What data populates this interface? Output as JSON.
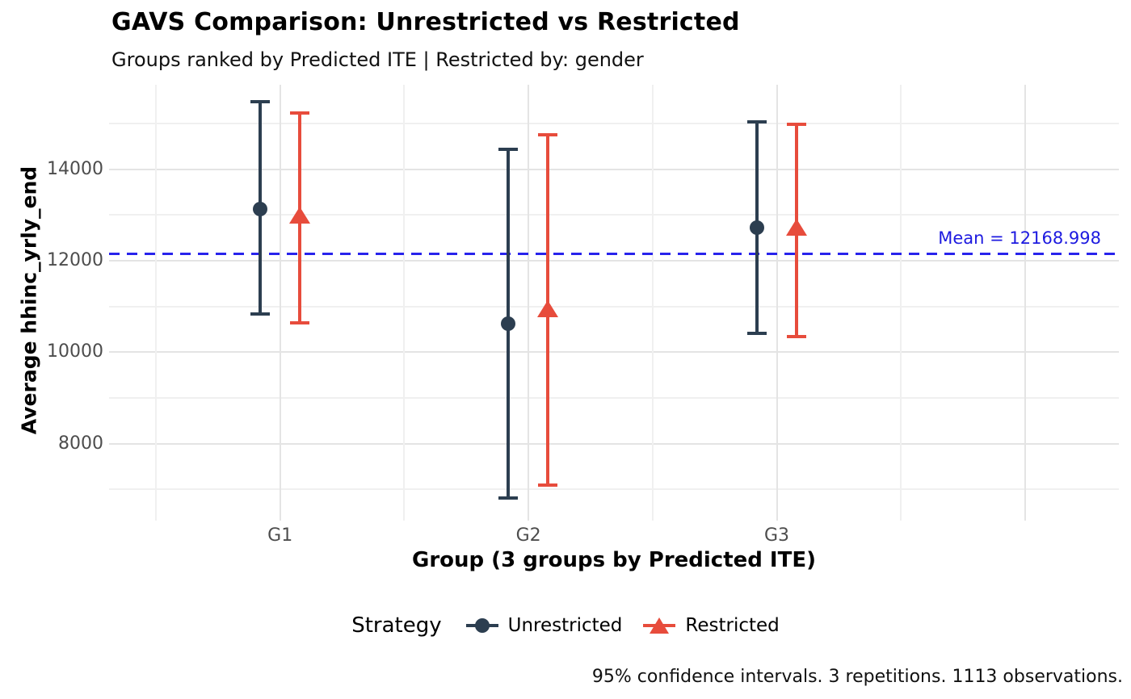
{
  "header": {
    "title": "GAVS Comparison: Unrestricted vs Restricted",
    "subtitle": "Groups ranked by Predicted ITE | Restricted by: gender"
  },
  "chart_data": {
    "type": "errorbar",
    "title": "GAVS Comparison: Unrestricted vs Restricted",
    "subtitle": "Groups ranked by Predicted ITE | Restricted by: gender",
    "categories": [
      "G1",
      "G2",
      "G3"
    ],
    "series": [
      {
        "name": "Unrestricted",
        "marker": "circle",
        "color": "#2C3E50",
        "centers": [
          13140,
          10630,
          12730
        ],
        "ci_low": [
          10840,
          6810,
          10420
        ],
        "ci_high": [
          15480,
          14440,
          15040
        ]
      },
      {
        "name": "Restricted",
        "marker": "triangle",
        "color": "#E74C3C",
        "centers": [
          12990,
          10950,
          12720
        ],
        "ci_low": [
          10650,
          7090,
          10340
        ],
        "ci_high": [
          15230,
          14750,
          14980
        ]
      }
    ],
    "mean_line": {
      "value": 12168.998,
      "label": "Mean = 12168.998",
      "color": "#2823EC",
      "style": "dashed"
    },
    "xlabel": "Group (3 groups by Predicted ITE)",
    "ylabel": "Average hhinc_yrly_end",
    "y_ticks": [
      8000,
      10000,
      12000,
      14000
    ],
    "ylim": [
      6320,
      15850
    ],
    "grid": true,
    "legend": {
      "title": "Strategy",
      "position": "bottom"
    },
    "caption": "95% confidence intervals. 3 repetitions. 1113 observations."
  }
}
